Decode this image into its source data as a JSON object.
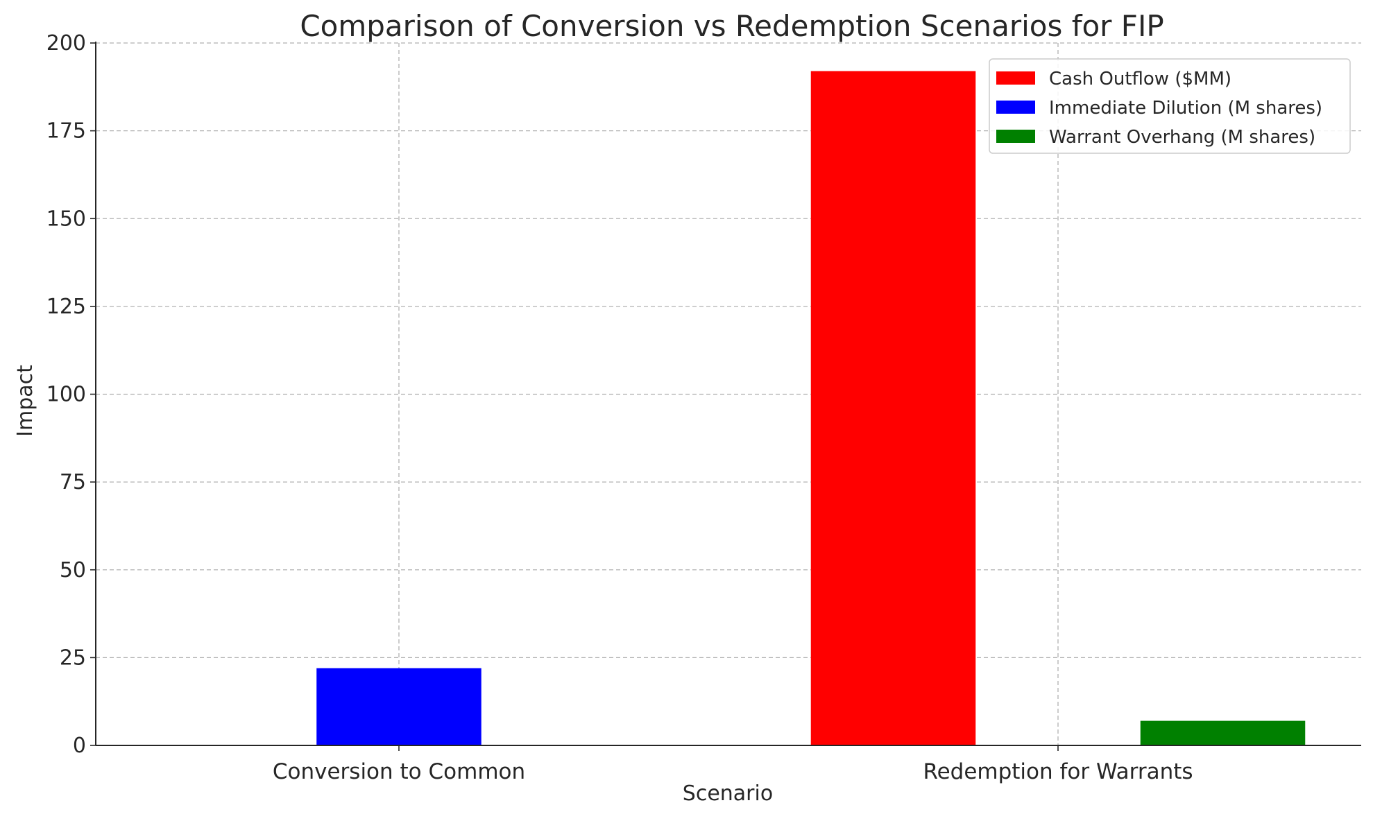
{
  "chart_data": {
    "type": "bar",
    "title": "Comparison of Conversion vs Redemption Scenarios for FIP",
    "xlabel": "Scenario",
    "ylabel": "Impact",
    "categories": [
      "Conversion to Common",
      "Redemption for Warrants"
    ],
    "series": [
      {
        "name": "Cash Outflow ($MM)",
        "color": "#ff0000",
        "values": [
          0,
          192
        ]
      },
      {
        "name": "Immediate Dilution (M shares)",
        "color": "#0000ff",
        "values": [
          22,
          0
        ]
      },
      {
        "name": "Warrant Overhang (M shares)",
        "color": "#008000",
        "values": [
          0,
          7
        ]
      }
    ],
    "ylim": [
      0,
      200
    ],
    "yticks": [
      0,
      25,
      50,
      75,
      100,
      125,
      150,
      175,
      200
    ],
    "grid": true,
    "legend_position": "top-right"
  }
}
